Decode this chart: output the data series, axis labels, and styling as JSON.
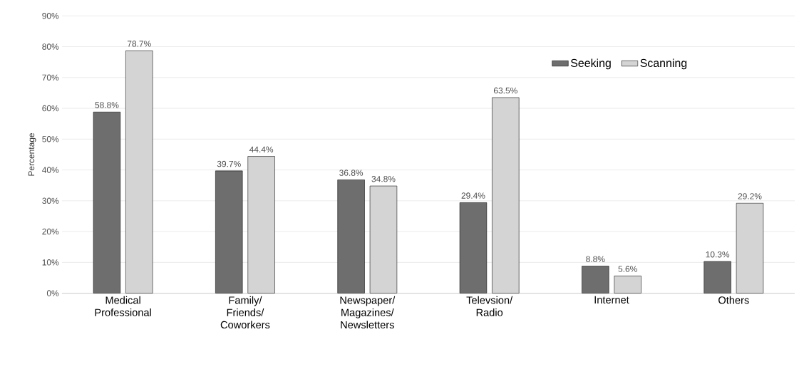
{
  "chart_data": {
    "type": "bar",
    "ylabel": "Percentage",
    "categories": [
      "Medical Professional",
      "Family/ Friends/ Coworkers",
      "Newspaper/ Magazines/ Newsletters",
      "Televsion/ Radio",
      "Internet",
      "Others"
    ],
    "series": [
      {
        "name": "Seeking",
        "color": "#6e6e6e",
        "values": [
          58.8,
          39.7,
          36.8,
          29.4,
          8.8,
          10.3
        ],
        "value_labels": [
          "58.8%",
          "39.7%",
          "36.8%",
          "29.4%",
          "8.8%",
          "10.3%"
        ]
      },
      {
        "name": "Scanning",
        "color": "#d4d4d4",
        "values": [
          78.7,
          44.4,
          34.8,
          63.5,
          5.6,
          29.2
        ],
        "value_labels": [
          "78.7%",
          "44.4%",
          "34.8%",
          "63.5%",
          "5.6%",
          "29.2%"
        ]
      }
    ],
    "ylim": [
      0,
      90
    ],
    "yticks": [
      {
        "value": 0,
        "label": "0%"
      },
      {
        "value": 10,
        "label": "10%"
      },
      {
        "value": 20,
        "label": "20%"
      },
      {
        "value": 30,
        "label": "30%"
      },
      {
        "value": 40,
        "label": "40%"
      },
      {
        "value": 50,
        "label": "50%"
      },
      {
        "value": 60,
        "label": "60%"
      },
      {
        "value": 70,
        "label": "70%"
      },
      {
        "value": 80,
        "label": "80%"
      },
      {
        "value": 90,
        "label": "90%"
      }
    ],
    "grid": "y",
    "legend": "top right"
  }
}
